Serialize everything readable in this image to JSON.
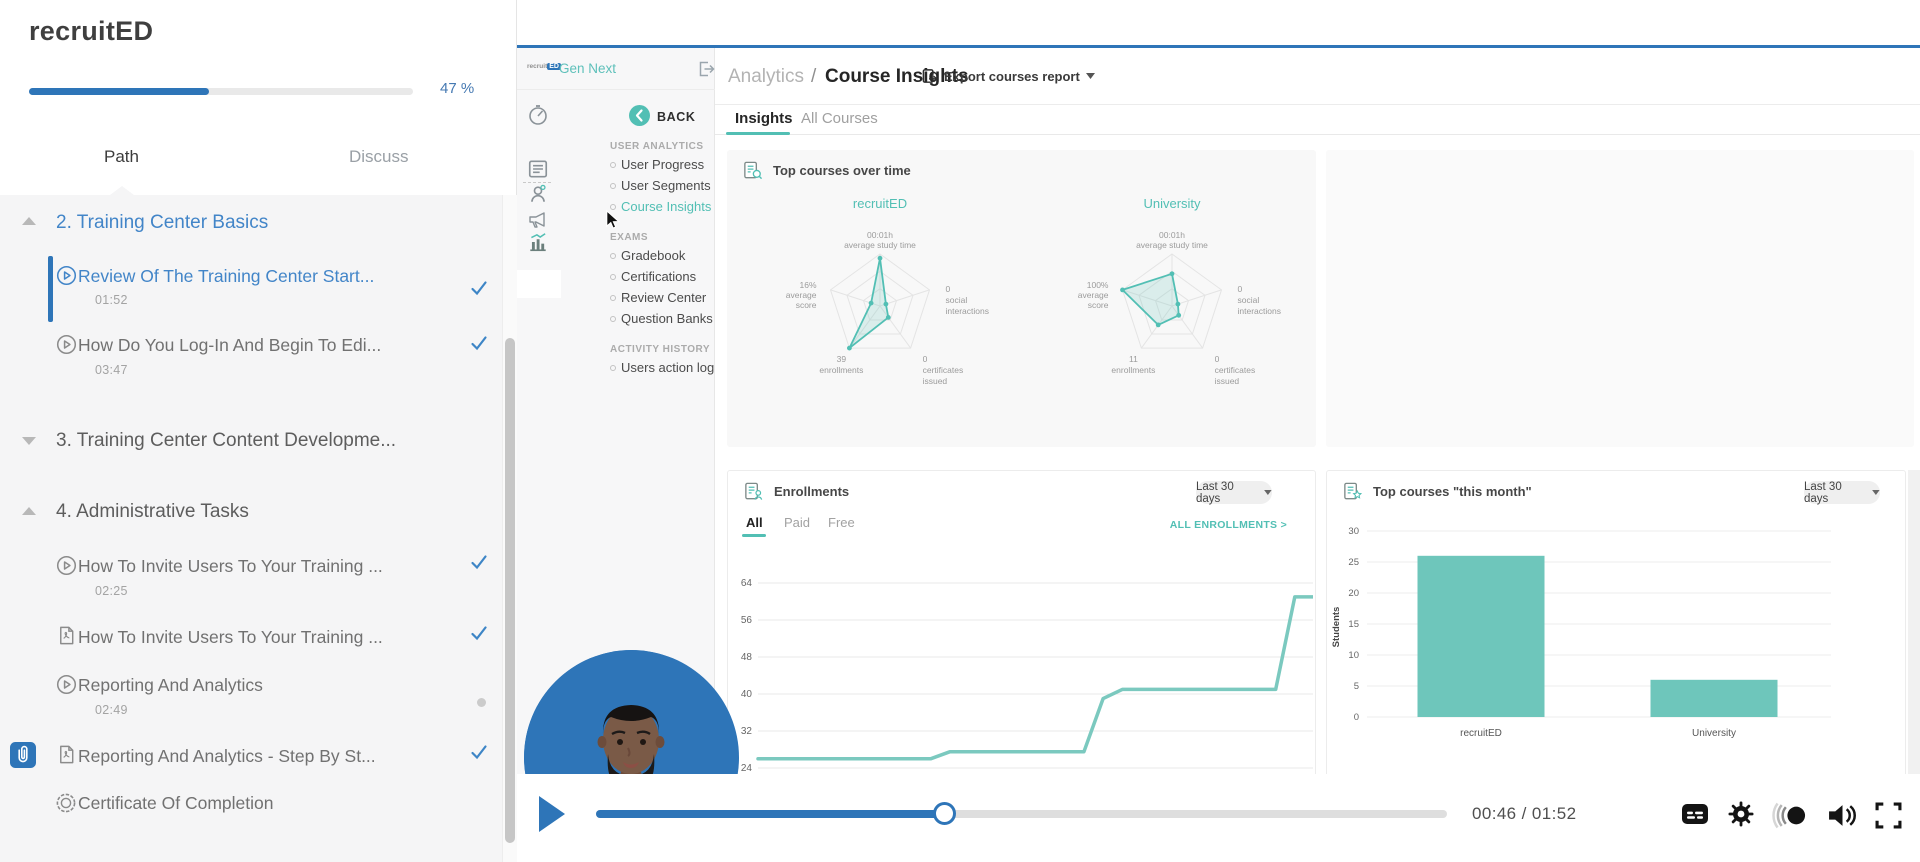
{
  "colors": {
    "blue": "#2e75b8",
    "link_blue": "#4285c8",
    "teal": "#52bfb4",
    "bar_teal": "#6ec6bb",
    "line_teal": "#7bc9bf"
  },
  "course_panel": {
    "title": "recruitED",
    "progress": {
      "label": "47 %",
      "value": 47
    },
    "tabs": [
      {
        "label": "Path"
      },
      {
        "label": "Discuss"
      }
    ],
    "sections": [
      {
        "title": "2. Training Center Basics",
        "state": "expanded",
        "items": [
          {
            "icon": "video",
            "label": "Review Of The Training Center Start...",
            "duration": "01:52",
            "status": "check",
            "active": true
          },
          {
            "icon": "video",
            "label": "How Do You Log-In And Begin To Edi...",
            "duration": "03:47",
            "status": "check"
          }
        ]
      },
      {
        "title": "3. Training Center Content Developme...",
        "state": "collapsed",
        "items": []
      },
      {
        "title": "4. Administrative Tasks",
        "state": "expanded",
        "items": [
          {
            "icon": "video",
            "label": "How To Invite Users To Your Training ...",
            "duration": "02:25",
            "status": "check"
          },
          {
            "icon": "pdf",
            "label": "How To Invite Users To Your Training ...",
            "status": "check"
          },
          {
            "icon": "video",
            "label": "Reporting And Analytics",
            "duration": "02:49",
            "status": "dot"
          },
          {
            "icon": "pdf",
            "label": "Reporting And Analytics - Step By St...",
            "status": "check",
            "attachment": true
          },
          {
            "icon": "certificate",
            "label": "Certificate Of Completion",
            "status": "none"
          }
        ]
      }
    ]
  },
  "video": {
    "app": {
      "brand": {
        "logo": "recruit",
        "logo_badge": "ED",
        "name": "Gen Next"
      },
      "back_label": "BACK",
      "nav_groups": [
        {
          "header": "USER ANALYTICS",
          "items": [
            {
              "label": "User Progress"
            },
            {
              "label": "User Segments"
            },
            {
              "label": "Course Insights",
              "selected": true
            }
          ]
        },
        {
          "header": "EXAMS",
          "items": [
            {
              "label": "Gradebook"
            },
            {
              "label": "Certifications"
            },
            {
              "label": "Review Center"
            },
            {
              "label": "Question Banks"
            }
          ]
        },
        {
          "header": "ACTIVITY HISTORY",
          "items": [
            {
              "label": "Users action log"
            }
          ]
        }
      ],
      "breadcrumb": {
        "section": "Analytics",
        "separator": "/",
        "page": "Course Insights"
      },
      "export_label": "Export courses report",
      "tabs": [
        {
          "label": "Insights"
        },
        {
          "label": "All Courses"
        }
      ],
      "cards": {
        "top_over_time": {
          "title": "Top courses over time"
        },
        "enrollments": {
          "title": "Enrollments",
          "filter": "Last 30 days",
          "tabs": [
            {
              "label": "All"
            },
            {
              "label": "Paid"
            },
            {
              "label": "Free"
            }
          ],
          "link": "ALL ENROLLMENTS >"
        },
        "top_month": {
          "title": "Top courses \"this month\"",
          "filter": "Last 30 days"
        }
      }
    },
    "controls": {
      "time": "00:46 / 01:52",
      "progress_value": 41
    }
  },
  "chart_data": [
    {
      "type": "radar",
      "title": "recruitED",
      "grid_levels": 3,
      "axes": [
        {
          "label_lines": [
            "00:01h",
            "average study time"
          ],
          "value": "00:01h",
          "fraction": 0.92
        },
        {
          "label_lines": [
            "0",
            "social",
            "interactions"
          ],
          "value": "0",
          "fraction": 0.12
        },
        {
          "label_lines": [
            "0",
            "certificates",
            "issued"
          ],
          "value": "0",
          "fraction": 0.27
        },
        {
          "label_lines": [
            "39",
            "enrollments"
          ],
          "value": "39",
          "fraction": 1.0
        },
        {
          "label_lines": [
            "16%",
            "average",
            "score"
          ],
          "value": "16%",
          "fraction": 0.18
        }
      ]
    },
    {
      "type": "radar",
      "title": "University",
      "grid_levels": 3,
      "axes": [
        {
          "label_lines": [
            "00:01h",
            "average study time"
          ],
          "value": "00:01h",
          "fraction": 0.62
        },
        {
          "label_lines": [
            "0",
            "social",
            "interactions"
          ],
          "value": "0",
          "fraction": 0.12
        },
        {
          "label_lines": [
            "0",
            "certificates",
            "issued"
          ],
          "value": "0",
          "fraction": 0.22
        },
        {
          "label_lines": [
            "11",
            "enrollments"
          ],
          "value": "11",
          "fraction": 0.45
        },
        {
          "label_lines": [
            "100%",
            "average",
            "score"
          ],
          "value": "100%",
          "fraction": 1.0
        }
      ]
    },
    {
      "type": "line",
      "title": "Enrollments",
      "ylim": [
        24,
        64
      ],
      "y_ticks": [
        24,
        32,
        40,
        48,
        56,
        64
      ],
      "grid": true,
      "color": "#7bc9bf",
      "series": [
        26,
        26,
        26,
        26,
        26,
        26,
        26,
        26,
        26,
        26,
        27.5,
        27.5,
        27.5,
        27.5,
        27.5,
        27.5,
        27.5,
        27.5,
        39,
        41,
        41,
        41,
        41,
        41,
        41,
        41,
        41,
        41,
        61,
        61
      ]
    },
    {
      "type": "bar",
      "title": "Top courses \"this month\"",
      "ylabel": "Students",
      "categories": [
        "recruitED",
        "University"
      ],
      "values": [
        26,
        6
      ],
      "y_ticks": [
        0,
        5,
        10,
        15,
        20,
        25,
        30
      ],
      "ylim": [
        0,
        30
      ],
      "grid": true,
      "color": "#6ec6bb"
    }
  ]
}
